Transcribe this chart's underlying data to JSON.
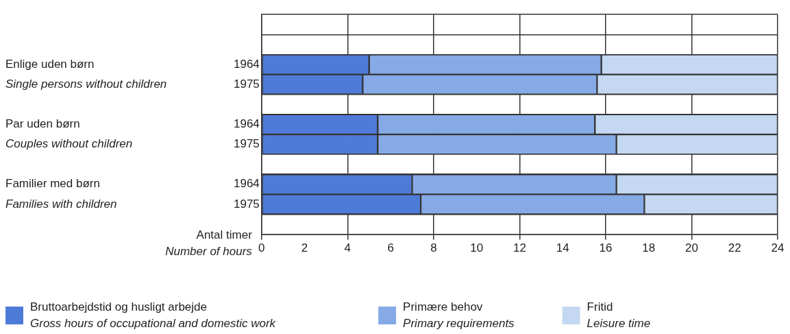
{
  "chart_data": {
    "type": "bar",
    "orientation": "horizontal",
    "stacked": true,
    "categories": [
      null,
      null,
      "1964",
      "1975",
      null,
      "1964",
      "1975",
      null,
      "1964",
      "1975",
      null
    ],
    "series": [
      {
        "name": "Bruttoarbejdstid og husligt arbejde\nGross hours of occupational and domestic work",
        "color": "#4f7bd8",
        "values": [
          null,
          null,
          5.0,
          4.7,
          null,
          5.4,
          5.4,
          null,
          7.0,
          7.4,
          null
        ]
      },
      {
        "name": "Primære behov\nPrimary requirements",
        "color": "#86aae6",
        "values": [
          null,
          null,
          10.8,
          10.9,
          null,
          10.1,
          11.1,
          null,
          9.5,
          10.4,
          null
        ]
      },
      {
        "name": "Fritid\nLeisure time",
        "color": "#c4d8f2",
        "values": [
          null,
          null,
          8.2,
          8.4,
          null,
          8.5,
          7.5,
          null,
          7.5,
          6.2,
          null
        ]
      }
    ],
    "xlabel": "Antal timer\nNumber of hours",
    "xlim": [
      0,
      24
    ],
    "xticks": [
      0,
      2,
      4,
      6,
      8,
      10,
      12,
      14,
      16,
      18,
      20,
      22,
      24
    ],
    "annotations": [
      "Enlige uden børn\nSingle persons without children",
      "Par uden børn\nCouples without children",
      "Familier med børn\nFamilies with children"
    ],
    "grid": true,
    "legend": "bottom"
  }
}
